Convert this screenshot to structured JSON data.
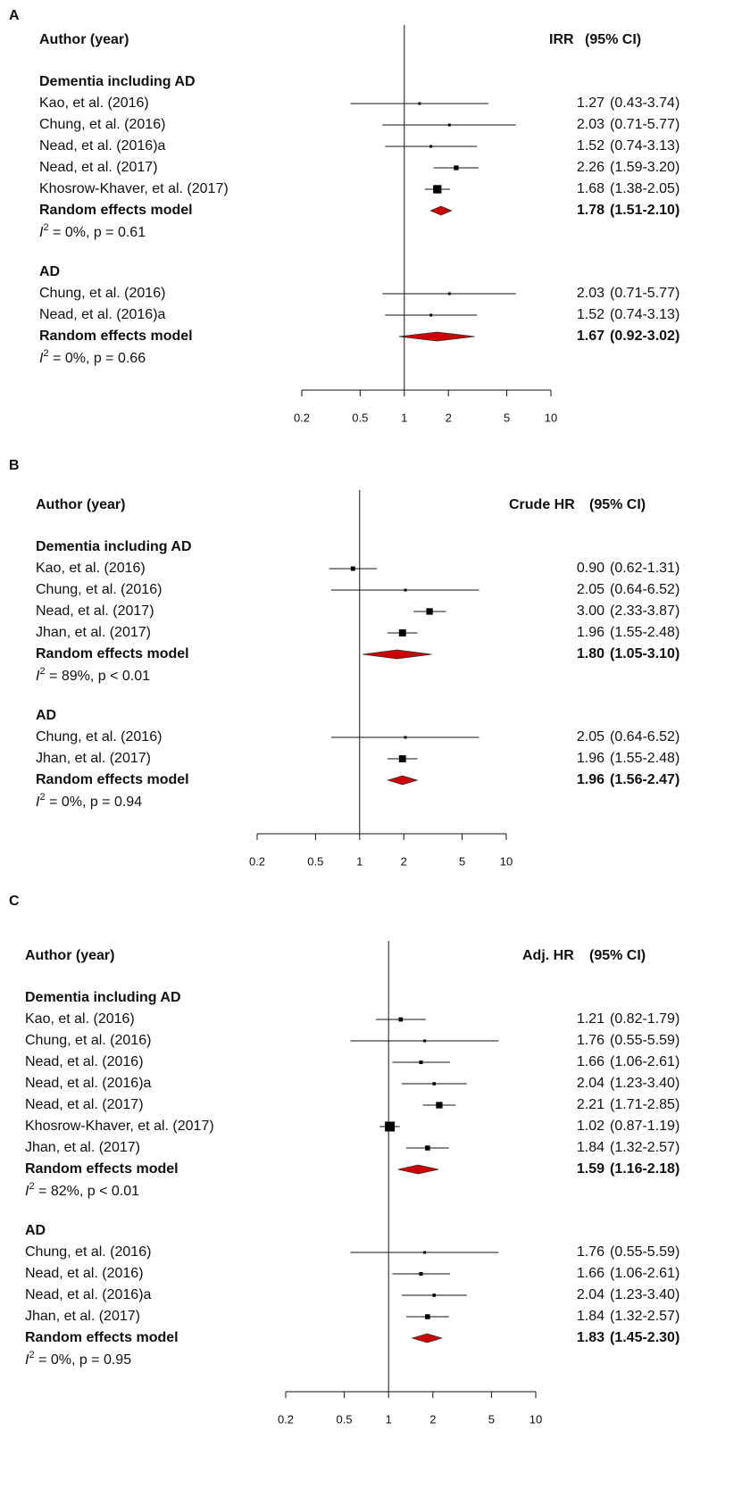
{
  "chart_data": [
    {
      "type": "forest",
      "panel": "A",
      "column_label": "Author (year)",
      "effect_label": "IRR",
      "ci_header": "(95% CI)",
      "xscale": "log",
      "xlim": [
        0.2,
        10
      ],
      "xticks": [
        0.2,
        0.5,
        1,
        2,
        5,
        10
      ],
      "ref_line": 1,
      "box_color": "#000000",
      "diamond_color": "#cc0000",
      "groups": [
        {
          "title": "Dementia including AD",
          "studies": [
            {
              "name": "Kao, et al. (2016)",
              "estimate": 1.27,
              "lower": 0.43,
              "upper": 3.74,
              "estimate_label": "1.27",
              "ci_label": "(0.43-3.74)"
            },
            {
              "name": "Chung, et al. (2016)",
              "estimate": 2.03,
              "lower": 0.71,
              "upper": 5.77,
              "estimate_label": "2.03",
              "ci_label": "(0.71-5.77)"
            },
            {
              "name": "Nead, et al. (2016)a",
              "estimate": 1.52,
              "lower": 0.74,
              "upper": 3.13,
              "estimate_label": "1.52",
              "ci_label": "(0.74-3.13)"
            },
            {
              "name": "Nead, et al. (2017)",
              "estimate": 2.26,
              "lower": 1.59,
              "upper": 3.2,
              "estimate_label": "2.26",
              "ci_label": "(1.59-3.20)"
            },
            {
              "name": "Khosrow-Khaver, et al. (2017)",
              "estimate": 1.68,
              "lower": 1.38,
              "upper": 2.05,
              "estimate_label": "1.68",
              "ci_label": "(1.38-2.05)"
            }
          ],
          "pooled": {
            "name": "Random effects model",
            "estimate": 1.78,
            "lower": 1.51,
            "upper": 2.1,
            "estimate_label": "1.78",
            "ci_label": "(1.51-2.10)"
          },
          "heterogeneity": {
            "symbol": "I",
            "power": "2",
            "text": " = 0%, p = 0.61"
          }
        },
        {
          "title": "AD",
          "studies": [
            {
              "name": "Chung, et al. (2016)",
              "estimate": 2.03,
              "lower": 0.71,
              "upper": 5.77,
              "estimate_label": "2.03",
              "ci_label": "(0.71-5.77)"
            },
            {
              "name": "Nead, et al. (2016)a",
              "estimate": 1.52,
              "lower": 0.74,
              "upper": 3.13,
              "estimate_label": "1.52",
              "ci_label": "(0.74-3.13)"
            }
          ],
          "pooled": {
            "name": "Random effects model",
            "estimate": 1.67,
            "lower": 0.92,
            "upper": 3.02,
            "estimate_label": "1.67",
            "ci_label": "(0.92-3.02)"
          },
          "heterogeneity": {
            "symbol": "I",
            "power": "2",
            "text": " = 0%, p = 0.66"
          }
        }
      ]
    },
    {
      "type": "forest",
      "panel": "B",
      "column_label": "Author (year)",
      "effect_label": "Crude HR",
      "ci_header": "(95% CI)",
      "xscale": "log",
      "xlim": [
        0.2,
        10
      ],
      "xticks": [
        0.2,
        0.5,
        1,
        2,
        5,
        10
      ],
      "ref_line": 1,
      "box_color": "#000000",
      "diamond_color": "#cc0000",
      "groups": [
        {
          "title": "Dementia including AD",
          "studies": [
            {
              "name": "Kao, et al. (2016)",
              "estimate": 0.9,
              "lower": 0.62,
              "upper": 1.31,
              "estimate_label": "0.90",
              "ci_label": "(0.62-1.31)"
            },
            {
              "name": "Chung, et al. (2016)",
              "estimate": 2.05,
              "lower": 0.64,
              "upper": 6.52,
              "estimate_label": "2.05",
              "ci_label": "(0.64-6.52)"
            },
            {
              "name": "Nead, et al. (2017)",
              "estimate": 3.0,
              "lower": 2.33,
              "upper": 3.87,
              "estimate_label": "3.00",
              "ci_label": "(2.33-3.87)"
            },
            {
              "name": "Jhan, et al. (2017)",
              "estimate": 1.96,
              "lower": 1.55,
              "upper": 2.48,
              "estimate_label": "1.96",
              "ci_label": "(1.55-2.48)"
            }
          ],
          "pooled": {
            "name": "Random effects model",
            "estimate": 1.8,
            "lower": 1.05,
            "upper": 3.1,
            "estimate_label": "1.80",
            "ci_label": "(1.05-3.10)"
          },
          "heterogeneity": {
            "symbol": "I",
            "power": "2",
            "text": " = 89%, p < 0.01"
          }
        },
        {
          "title": "AD",
          "studies": [
            {
              "name": "Chung, et al. (2016)",
              "estimate": 2.05,
              "lower": 0.64,
              "upper": 6.52,
              "estimate_label": "2.05",
              "ci_label": "(0.64-6.52)"
            },
            {
              "name": "Jhan, et al. (2017)",
              "estimate": 1.96,
              "lower": 1.55,
              "upper": 2.48,
              "estimate_label": "1.96",
              "ci_label": "(1.55-2.48)"
            }
          ],
          "pooled": {
            "name": "Random effects model",
            "estimate": 1.96,
            "lower": 1.56,
            "upper": 2.47,
            "estimate_label": "1.96",
            "ci_label": "(1.56-2.47)"
          },
          "heterogeneity": {
            "symbol": "I",
            "power": "2",
            "text": " = 0%, p = 0.94"
          }
        }
      ]
    },
    {
      "type": "forest",
      "panel": "C",
      "column_label": "Author (year)",
      "effect_label": "Adj. HR",
      "ci_header": "(95% CI)",
      "xscale": "log",
      "xlim": [
        0.2,
        10
      ],
      "xticks": [
        0.2,
        0.5,
        1,
        2,
        5,
        10
      ],
      "ref_line": 1,
      "box_color": "#000000",
      "diamond_color": "#cc0000",
      "groups": [
        {
          "title": "Dementia including AD",
          "studies": [
            {
              "name": "Kao, et al. (2016)",
              "estimate": 1.21,
              "lower": 0.82,
              "upper": 1.79,
              "estimate_label": "1.21",
              "ci_label": "(0.82-1.79)"
            },
            {
              "name": "Chung, et al. (2016)",
              "estimate": 1.76,
              "lower": 0.55,
              "upper": 5.59,
              "estimate_label": "1.76",
              "ci_label": "(0.55-5.59)"
            },
            {
              "name": "Nead, et al. (2016)",
              "estimate": 1.66,
              "lower": 1.06,
              "upper": 2.61,
              "estimate_label": "1.66",
              "ci_label": "(1.06-2.61)"
            },
            {
              "name": "Nead, et al. (2016)a",
              "estimate": 2.04,
              "lower": 1.23,
              "upper": 3.4,
              "estimate_label": "2.04",
              "ci_label": "(1.23-3.40)"
            },
            {
              "name": "Nead, et al. (2017)",
              "estimate": 2.21,
              "lower": 1.71,
              "upper": 2.85,
              "estimate_label": "2.21",
              "ci_label": "(1.71-2.85)"
            },
            {
              "name": "Khosrow-Khaver, et al. (2017)",
              "estimate": 1.02,
              "lower": 0.87,
              "upper": 1.19,
              "estimate_label": "1.02",
              "ci_label": "(0.87-1.19)"
            },
            {
              "name": "Jhan, et al. (2017)",
              "estimate": 1.84,
              "lower": 1.32,
              "upper": 2.57,
              "estimate_label": "1.84",
              "ci_label": "(1.32-2.57)"
            }
          ],
          "pooled": {
            "name": "Random effects model",
            "estimate": 1.59,
            "lower": 1.16,
            "upper": 2.18,
            "estimate_label": "1.59",
            "ci_label": "(1.16-2.18)"
          },
          "heterogeneity": {
            "symbol": "I",
            "power": "2",
            "text": " = 82%, p < 0.01"
          }
        },
        {
          "title": "AD",
          "studies": [
            {
              "name": "Chung, et al. (2016)",
              "estimate": 1.76,
              "lower": 0.55,
              "upper": 5.59,
              "estimate_label": "1.76",
              "ci_label": "(0.55-5.59)"
            },
            {
              "name": "Nead, et al. (2016)",
              "estimate": 1.66,
              "lower": 1.06,
              "upper": 2.61,
              "estimate_label": "1.66",
              "ci_label": "(1.06-2.61)"
            },
            {
              "name": "Nead, et al. (2016)a",
              "estimate": 2.04,
              "lower": 1.23,
              "upper": 3.4,
              "estimate_label": "2.04",
              "ci_label": "(1.23-3.40)"
            },
            {
              "name": "Jhan, et al. (2017)",
              "estimate": 1.84,
              "lower": 1.32,
              "upper": 2.57,
              "estimate_label": "1.84",
              "ci_label": "(1.32-2.57)"
            }
          ],
          "pooled": {
            "name": "Random effects model",
            "estimate": 1.83,
            "lower": 1.45,
            "upper": 2.3,
            "estimate_label": "1.83",
            "ci_label": "(1.45-2.30)"
          },
          "heterogeneity": {
            "symbol": "I",
            "power": "2",
            "text": " = 0%, p = 0.95"
          }
        }
      ]
    }
  ]
}
